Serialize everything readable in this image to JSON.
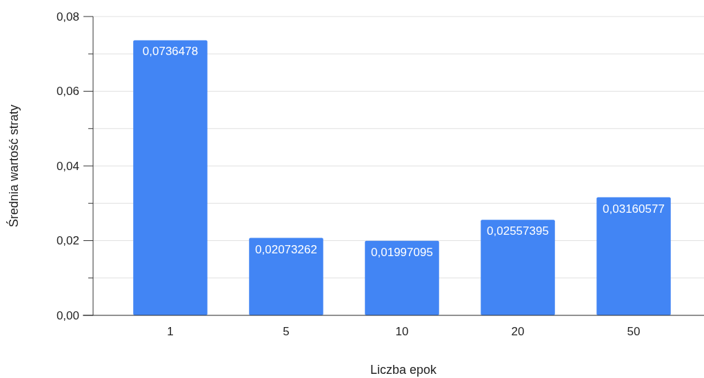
{
  "chart_data": {
    "type": "bar",
    "xlabel": "Liczba epok",
    "ylabel": "Średnia wartość straty",
    "categories": [
      "1",
      "5",
      "10",
      "20",
      "50"
    ],
    "values": [
      0.0736478,
      0.02073262,
      0.01997095,
      0.02557395,
      0.03160577
    ],
    "value_labels": [
      "0,0736478",
      "0,02073262",
      "0,01997095",
      "0,02557395",
      "0,03160577"
    ],
    "color": "#4285f4",
    "grid": true,
    "ylim": [
      0,
      0.08
    ],
    "yticks": [
      {
        "value": 0,
        "label": "0,00"
      },
      {
        "value": 0.01,
        "label": null
      },
      {
        "value": 0.02,
        "label": "0,02"
      },
      {
        "value": 0.03,
        "label": null
      },
      {
        "value": 0.04,
        "label": "0,04"
      },
      {
        "value": 0.05,
        "label": null
      },
      {
        "value": 0.06,
        "label": "0,06"
      },
      {
        "value": 0.07,
        "label": null
      },
      {
        "value": 0.08,
        "label": "0,08"
      }
    ]
  }
}
